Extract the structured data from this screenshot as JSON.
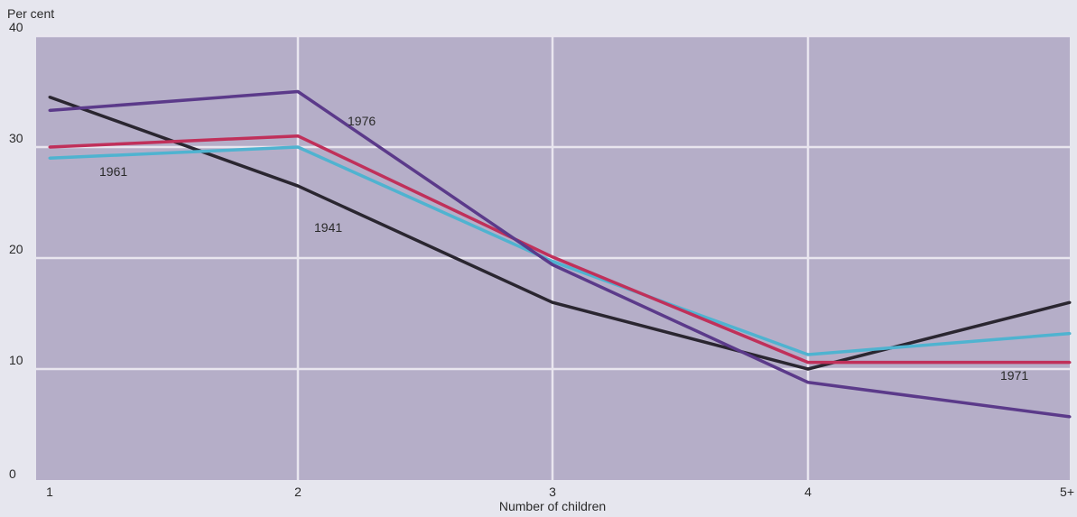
{
  "chart_data": {
    "type": "line",
    "ylabel": "Per cent",
    "xlabel": "Number of children",
    "categories": [
      "1",
      "2",
      "3",
      "4",
      "5+"
    ],
    "ylim": [
      0,
      40
    ],
    "yticks": [
      "0",
      "10",
      "20",
      "30",
      "40"
    ],
    "grid": true,
    "legend": "none",
    "series": [
      {
        "name": "1941",
        "color": "#2a2630",
        "values": [
          34.5,
          26.5,
          16.0,
          10.0,
          16.0
        ]
      },
      {
        "name": "1961",
        "color": "#4fb3d0",
        "values": [
          29.0,
          30.0,
          19.7,
          11.3,
          13.2
        ]
      },
      {
        "name": "1971",
        "color": "#c0305a",
        "values": [
          30.0,
          31.0,
          20.1,
          10.6,
          10.6
        ]
      },
      {
        "name": "1976",
        "color": "#5b3a8a",
        "values": [
          33.3,
          35.0,
          19.4,
          8.8,
          5.7
        ]
      }
    ]
  },
  "colors": {
    "plot_background": "#b5aec8",
    "gridline": "#e9e6ef"
  }
}
